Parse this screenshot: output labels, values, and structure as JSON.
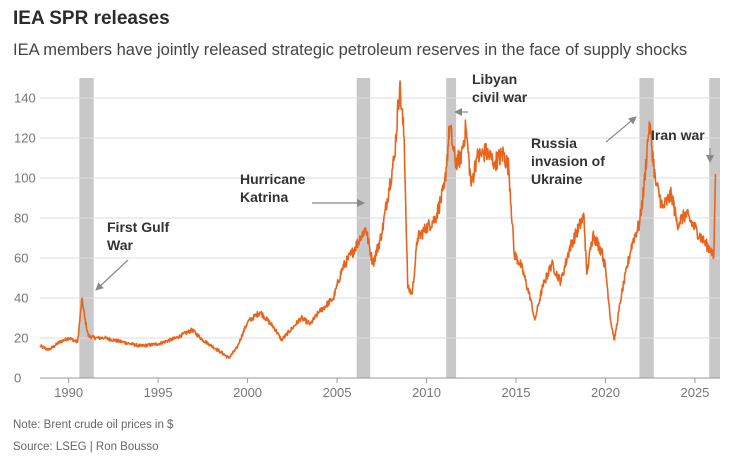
{
  "title": "IEA SPR releases",
  "subtitle": "IEA members have jointly released strategic petroleum reserves in the face of supply shocks",
  "note": "Note: Brent crude oil prices in $",
  "source": "Source: LSEG | Ron Bousso",
  "colors": {
    "series": "#e8641c",
    "band": "#c8c8c8",
    "grid": "#dddddd",
    "arrow": "#888888"
  },
  "chart_data": {
    "type": "line",
    "title": "IEA SPR releases",
    "xlabel": "",
    "ylabel": "",
    "xlim": [
      1988.3,
      2026.5
    ],
    "ylim": [
      0,
      150
    ],
    "grid": true,
    "y_ticks": [
      0,
      20,
      40,
      60,
      80,
      100,
      120,
      140
    ],
    "x_ticks": [
      1990,
      1995,
      2000,
      2005,
      2010,
      2015,
      2020,
      2025
    ],
    "series": [
      {
        "x": [
          1988.4,
          1988.9,
          1989.5,
          1990.0,
          1990.5,
          1990.75,
          1990.9,
          1991.1,
          1991.5,
          1992.0,
          1993.0,
          1994.0,
          1995.0,
          1996.0,
          1996.9,
          1997.5,
          1998.5,
          1998.95,
          1999.4,
          2000.0,
          2000.7,
          2001.5,
          2001.9,
          2002.5,
          2003.0,
          2003.5,
          2004.0,
          2004.8,
          2005.3,
          2005.8,
          2006.3,
          2006.6,
          2007.0,
          2007.5,
          2007.9,
          2008.2,
          2008.5,
          2008.75,
          2008.95,
          2009.2,
          2009.5,
          2010.0,
          2010.5,
          2011.0,
          2011.3,
          2011.6,
          2011.9,
          2012.2,
          2012.5,
          2012.8,
          2013.3,
          2013.8,
          2014.3,
          2014.6,
          2014.9,
          2015.3,
          2015.8,
          2016.05,
          2016.5,
          2017.0,
          2017.5,
          2018.0,
          2018.8,
          2018.95,
          2019.3,
          2019.8,
          2020.0,
          2020.3,
          2020.5,
          2020.9,
          2021.5,
          2021.9,
          2022.15,
          2022.45,
          2022.8,
          2023.2,
          2023.7,
          2024.0,
          2024.5,
          2025.0,
          2025.5,
          2025.9,
          2026.05,
          2026.15
        ],
        "values": [
          16,
          14,
          18,
          20,
          18,
          40,
          30,
          21,
          20,
          20,
          18,
          16,
          17,
          20,
          24,
          19,
          13,
          10,
          15,
          28,
          33,
          25,
          19,
          25,
          30,
          27,
          33,
          40,
          55,
          62,
          70,
          75,
          57,
          72,
          95,
          110,
          146,
          120,
          45,
          42,
          70,
          75,
          80,
          95,
          126,
          108,
          110,
          125,
          96,
          110,
          113,
          108,
          112,
          105,
          62,
          56,
          40,
          29,
          46,
          57,
          48,
          65,
          81,
          52,
          72,
          63,
          55,
          28,
          19,
          42,
          68,
          77,
          95,
          128,
          98,
          85,
          92,
          77,
          82,
          75,
          68,
          64,
          60,
          102
        ]
      }
    ],
    "bands": [
      {
        "start": 1990.6,
        "end": 1991.4
      },
      {
        "start": 2006.1,
        "end": 2006.85
      },
      {
        "start": 2011.1,
        "end": 2011.65
      },
      {
        "start": 2021.9,
        "end": 2022.7
      },
      {
        "start": 2025.8,
        "end": 2026.4
      }
    ],
    "annotations": [
      {
        "lines": [
          "First Gulf",
          "War"
        ],
        "x": 1990.75,
        "y": 40
      },
      {
        "lines": [
          "Hurricane",
          "Katrina"
        ],
        "x": 2005.8,
        "y": 85
      },
      {
        "lines": [
          "Libyan",
          "civil war"
        ],
        "x": 2011.5,
        "y": 130
      },
      {
        "lines": [
          "Russia",
          "invasion of",
          "Ukraine"
        ],
        "x": 2022.2,
        "y": 126
      },
      {
        "lines": [
          "Iran war"
        ],
        "x": 2026.1,
        "y": 102
      }
    ]
  }
}
